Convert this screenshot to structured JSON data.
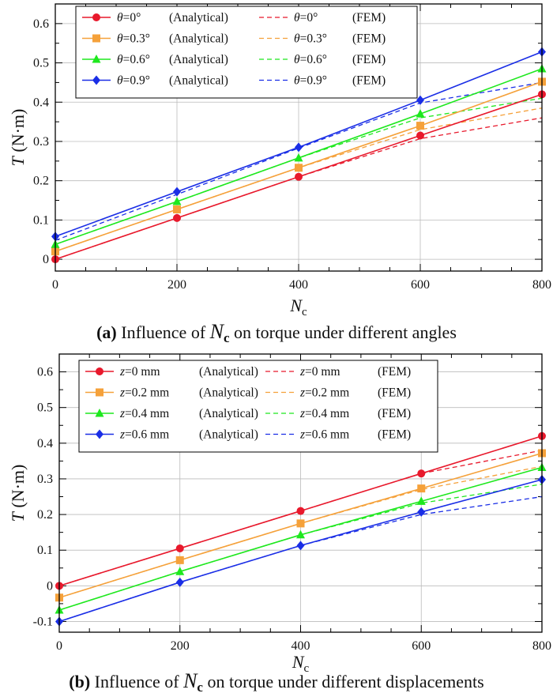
{
  "chart_data": [
    {
      "type": "line",
      "panel": "a",
      "caption": {
        "label": "(a)",
        "text": "Influence of",
        "symbol": "N",
        "subscript": "c",
        "suffix": "on torque under different angles"
      },
      "xlabel": {
        "symbol": "N",
        "subscript": "c"
      },
      "ylabel": {
        "symbol": "T",
        "unit": "(N·m)"
      },
      "xlim": [
        0,
        800
      ],
      "ylim": [
        -0.03,
        0.65
      ],
      "xticks": [
        0,
        200,
        400,
        600,
        800
      ],
      "xtick_labels": [
        "0",
        "200",
        "400",
        "600",
        "800"
      ],
      "yticks": [
        0,
        0.1,
        0.2,
        0.3,
        0.4,
        0.5,
        0.6
      ],
      "ytick_labels": [
        "0",
        "0.1",
        "0.2",
        "0.3",
        "0.4",
        "0.5",
        "0.6"
      ],
      "grid": true,
      "legend_position": "top-left",
      "x": [
        0,
        200,
        400,
        600,
        800
      ],
      "series": [
        {
          "name": "θ=0° (Analytical)",
          "param": "θ",
          "value": "=0°",
          "method": "(Analytical)",
          "kind": "analytical",
          "marker": "circle",
          "color": "#e8192c",
          "values": [
            0.0,
            0.105,
            0.21,
            0.315,
            0.42
          ]
        },
        {
          "name": "θ=0.3° (Analytical)",
          "param": "θ",
          "value": "=0.3°",
          "method": "(Analytical)",
          "kind": "analytical",
          "marker": "square",
          "color": "#f5a13a",
          "values": [
            0.02,
            0.127,
            0.233,
            0.34,
            0.452
          ]
        },
        {
          "name": "θ=0.6° (Analytical)",
          "param": "θ",
          "value": "=0.6°",
          "method": "(Analytical)",
          "kind": "analytical",
          "marker": "triangle",
          "color": "#1ee81e",
          "values": [
            0.038,
            0.147,
            0.258,
            0.37,
            0.485
          ]
        },
        {
          "name": "θ=0.9° (Analytical)",
          "param": "θ",
          "value": "=0.9°",
          "method": "(Analytical)",
          "kind": "analytical",
          "marker": "diamond",
          "color": "#1a2ee6",
          "values": [
            0.058,
            0.172,
            0.285,
            0.405,
            0.528
          ]
        },
        {
          "name": "θ=0° (FEM)",
          "param": "θ",
          "value": "=0°",
          "method": "(FEM)",
          "kind": "fem",
          "color": "#e8192c",
          "values": [
            0.0,
            0.105,
            0.21,
            0.307,
            0.36
          ]
        },
        {
          "name": "θ=0.3° (FEM)",
          "param": "θ",
          "value": "=0.3°",
          "method": "(FEM)",
          "kind": "fem",
          "color": "#f5a13a",
          "values": [
            0.02,
            0.127,
            0.233,
            0.33,
            0.385
          ]
        },
        {
          "name": "θ=0.6° (FEM)",
          "param": "θ",
          "value": "=0.6°",
          "method": "(FEM)",
          "kind": "fem",
          "color": "#1ee81e",
          "values": [
            0.038,
            0.147,
            0.258,
            0.36,
            0.41
          ]
        },
        {
          "name": "θ=0.9° (FEM)",
          "param": "θ",
          "value": "=0.9°",
          "method": "(FEM)",
          "kind": "fem",
          "color": "#1a2ee6",
          "values": [
            0.048,
            0.165,
            0.283,
            0.398,
            0.45
          ]
        }
      ]
    },
    {
      "type": "line",
      "panel": "b",
      "caption": {
        "label": "(b)",
        "text": "Influence of",
        "symbol": "N",
        "subscript": "c",
        "suffix": "on torque under different displacements"
      },
      "xlabel": {
        "symbol": "N",
        "subscript": "c"
      },
      "ylabel": {
        "symbol": "T",
        "unit": "(N·m)"
      },
      "xlim": [
        0,
        800
      ],
      "ylim": [
        -0.13,
        0.65
      ],
      "xticks": [
        0,
        200,
        400,
        600,
        800
      ],
      "xtick_labels": [
        "0",
        "200",
        "400",
        "600",
        "800"
      ],
      "yticks": [
        -0.1,
        0,
        0.1,
        0.2,
        0.3,
        0.4,
        0.5,
        0.6
      ],
      "ytick_labels": [
        "-0.1",
        "0",
        "0.1",
        "0.2",
        "0.3",
        "0.4",
        "0.5",
        "0.6"
      ],
      "grid": true,
      "legend_position": "top",
      "x": [
        0,
        200,
        400,
        600,
        800
      ],
      "series": [
        {
          "name": "z=0 mm (Analytical)",
          "param": "z",
          "value": "=0 mm",
          "method": "(Analytical)",
          "kind": "analytical",
          "marker": "circle",
          "color": "#e8192c",
          "values": [
            0.0,
            0.105,
            0.21,
            0.315,
            0.42
          ]
        },
        {
          "name": "z=0.2 mm (Analytical)",
          "param": "z",
          "value": "=0.2 mm",
          "method": "(Analytical)",
          "kind": "analytical",
          "marker": "square",
          "color": "#f5a13a",
          "values": [
            -0.033,
            0.072,
            0.175,
            0.273,
            0.372
          ]
        },
        {
          "name": "z=0.4 mm (Analytical)",
          "param": "z",
          "value": "=0.4 mm",
          "method": "(Analytical)",
          "kind": "analytical",
          "marker": "triangle",
          "color": "#1ee81e",
          "values": [
            -0.068,
            0.04,
            0.143,
            0.237,
            0.332
          ]
        },
        {
          "name": "z=0.6 mm (Analytical)",
          "param": "z",
          "value": "=0.6 mm",
          "method": "(Analytical)",
          "kind": "analytical",
          "marker": "diamond",
          "color": "#1a2ee6",
          "values": [
            -0.1,
            0.01,
            0.113,
            0.207,
            0.298
          ]
        },
        {
          "name": "z=0 mm (FEM)",
          "param": "z",
          "value": "=0 mm",
          "method": "(FEM)",
          "kind": "fem",
          "color": "#e8192c",
          "values": [
            0.0,
            0.105,
            0.21,
            0.315,
            0.38
          ]
        },
        {
          "name": "z=0.2 mm (FEM)",
          "param": "z",
          "value": "=0.2 mm",
          "method": "(FEM)",
          "kind": "fem",
          "color": "#f5a13a",
          "values": [
            -0.033,
            0.072,
            0.175,
            0.27,
            0.335
          ]
        },
        {
          "name": "z=0.4 mm (FEM)",
          "param": "z",
          "value": "=0.4 mm",
          "method": "(FEM)",
          "kind": "fem",
          "color": "#1ee81e",
          "values": [
            -0.068,
            0.04,
            0.143,
            0.232,
            0.285
          ]
        },
        {
          "name": "z=0.6 mm (FEM)",
          "param": "z",
          "value": "=0.6 mm",
          "method": "(FEM)",
          "kind": "fem",
          "color": "#1a2ee6",
          "values": [
            -0.1,
            0.01,
            0.113,
            0.2,
            0.25
          ]
        }
      ]
    }
  ]
}
